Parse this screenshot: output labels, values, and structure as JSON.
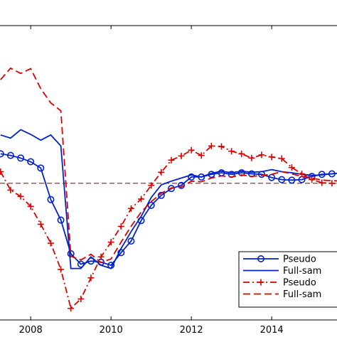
{
  "chart_data": {
    "type": "line",
    "title": "",
    "xlabel": "",
    "ylabel": "",
    "xlim": [
      2007.2,
      2015.75
    ],
    "ylim": [
      -2.6,
      3.0
    ],
    "x_ticks": [
      2008,
      2010,
      2012,
      2014
    ],
    "x_tick_labels": [
      "2008",
      "2010",
      "2012",
      "2014"
    ],
    "grid": false,
    "legend_position": "bottom-right",
    "reference_line": {
      "y": 0.0,
      "color": "#8b3a3a",
      "style": "dashed"
    },
    "series": [
      {
        "name": "Pseudo",
        "color": "#0022cc",
        "line_style": "solid",
        "marker": "circle",
        "x": [
          2007.25,
          2007.5,
          2007.75,
          2008.0,
          2008.25,
          2008.5,
          2008.75,
          2009.0,
          2009.25,
          2009.5,
          2009.75,
          2010.0,
          2010.25,
          2010.5,
          2010.75,
          2011.0,
          2011.25,
          2011.5,
          2011.75,
          2012.0,
          2012.25,
          2012.5,
          2012.75,
          2013.0,
          2013.25,
          2013.5,
          2013.75,
          2014.0,
          2014.25,
          2014.5,
          2014.75,
          2015.0,
          2015.25,
          2015.5,
          2015.75
        ],
        "y": [
          0.56,
          0.53,
          0.48,
          0.41,
          0.29,
          -0.31,
          -0.7,
          -1.34,
          -1.54,
          -1.48,
          -1.5,
          -1.56,
          -1.32,
          -1.1,
          -0.71,
          -0.42,
          -0.23,
          -0.1,
          -0.04,
          0.12,
          0.12,
          0.17,
          0.2,
          0.17,
          0.2,
          0.18,
          0.17,
          0.11,
          0.07,
          0.06,
          0.07,
          0.13,
          0.17,
          0.18,
          0.2
        ]
      },
      {
        "name": "Full-sam",
        "color": "#0022cc",
        "line_style": "solid",
        "marker": "none",
        "x": [
          2007.25,
          2007.5,
          2007.75,
          2008.0,
          2008.25,
          2008.5,
          2008.75,
          2009.0,
          2009.25,
          2009.5,
          2009.75,
          2010.0,
          2010.25,
          2010.5,
          2010.75,
          2011.0,
          2011.25,
          2011.5,
          2011.75,
          2012.0,
          2012.25,
          2012.5,
          2012.75,
          2013.0,
          2013.25,
          2013.5,
          2013.75,
          2014.0,
          2014.25,
          2014.5,
          2014.75,
          2015.0,
          2015.25,
          2015.5,
          2015.75
        ],
        "y": [
          0.92,
          0.86,
          1.02,
          0.93,
          0.82,
          0.92,
          0.71,
          -1.62,
          -1.62,
          -1.4,
          -1.56,
          -1.62,
          -1.24,
          -0.92,
          -0.63,
          -0.27,
          -0.03,
          0.04,
          0.1,
          0.16,
          0.12,
          0.19,
          0.23,
          0.2,
          0.23,
          0.21,
          0.22,
          0.26,
          0.22,
          0.2,
          0.17,
          0.15,
          0.16,
          0.18,
          0.2
        ]
      },
      {
        "name": "Pseudo",
        "color": "#dd0000",
        "line_style": "dashdot",
        "marker": "plus",
        "x": [
          2007.25,
          2007.5,
          2007.75,
          2008.0,
          2008.25,
          2008.5,
          2008.75,
          2009.0,
          2009.25,
          2009.5,
          2009.75,
          2010.0,
          2010.25,
          2010.5,
          2010.75,
          2011.0,
          2011.25,
          2011.5,
          2011.75,
          2012.0,
          2012.25,
          2012.5,
          2012.75,
          2013.0,
          2013.25,
          2013.5,
          2013.75,
          2014.0,
          2014.25,
          2014.5,
          2014.75,
          2015.0,
          2015.25,
          2015.5,
          2015.75
        ],
        "y": [
          0.22,
          -0.13,
          -0.25,
          -0.44,
          -0.78,
          -1.14,
          -1.64,
          -2.38,
          -2.2,
          -1.8,
          -1.4,
          -1.12,
          -0.82,
          -0.48,
          -0.3,
          -0.04,
          0.21,
          0.44,
          0.52,
          0.63,
          0.53,
          0.71,
          0.7,
          0.61,
          0.56,
          0.48,
          0.54,
          0.5,
          0.47,
          0.3,
          0.18,
          0.07,
          0.01,
          0.0,
          0.0
        ]
      },
      {
        "name": "Full-sam",
        "color": "#dd0000",
        "line_style": "dashed",
        "marker": "none",
        "x": [
          2007.25,
          2007.5,
          2007.75,
          2008.0,
          2008.25,
          2008.5,
          2008.75,
          2009.0,
          2009.25,
          2009.5,
          2009.75,
          2010.0,
          2010.25,
          2010.5,
          2010.75,
          2011.0,
          2011.25,
          2011.5,
          2011.75,
          2012.0,
          2012.25,
          2012.5,
          2012.75,
          2013.0,
          2013.25,
          2013.5,
          2013.75,
          2014.0,
          2014.25,
          2014.5,
          2014.75,
          2015.0,
          2015.25,
          2015.5,
          2015.75
        ],
        "y": [
          1.97,
          2.19,
          2.09,
          2.18,
          1.8,
          1.53,
          1.38,
          -1.39,
          -1.46,
          -1.35,
          -1.51,
          -1.44,
          -1.12,
          -0.82,
          -0.55,
          -0.35,
          -0.19,
          -0.09,
          -0.07,
          0.04,
          0.03,
          0.1,
          0.14,
          0.12,
          0.16,
          0.13,
          0.15,
          0.17,
          0.22,
          0.18,
          0.13,
          0.1,
          0.06,
          0.05,
          0.04
        ]
      }
    ]
  }
}
